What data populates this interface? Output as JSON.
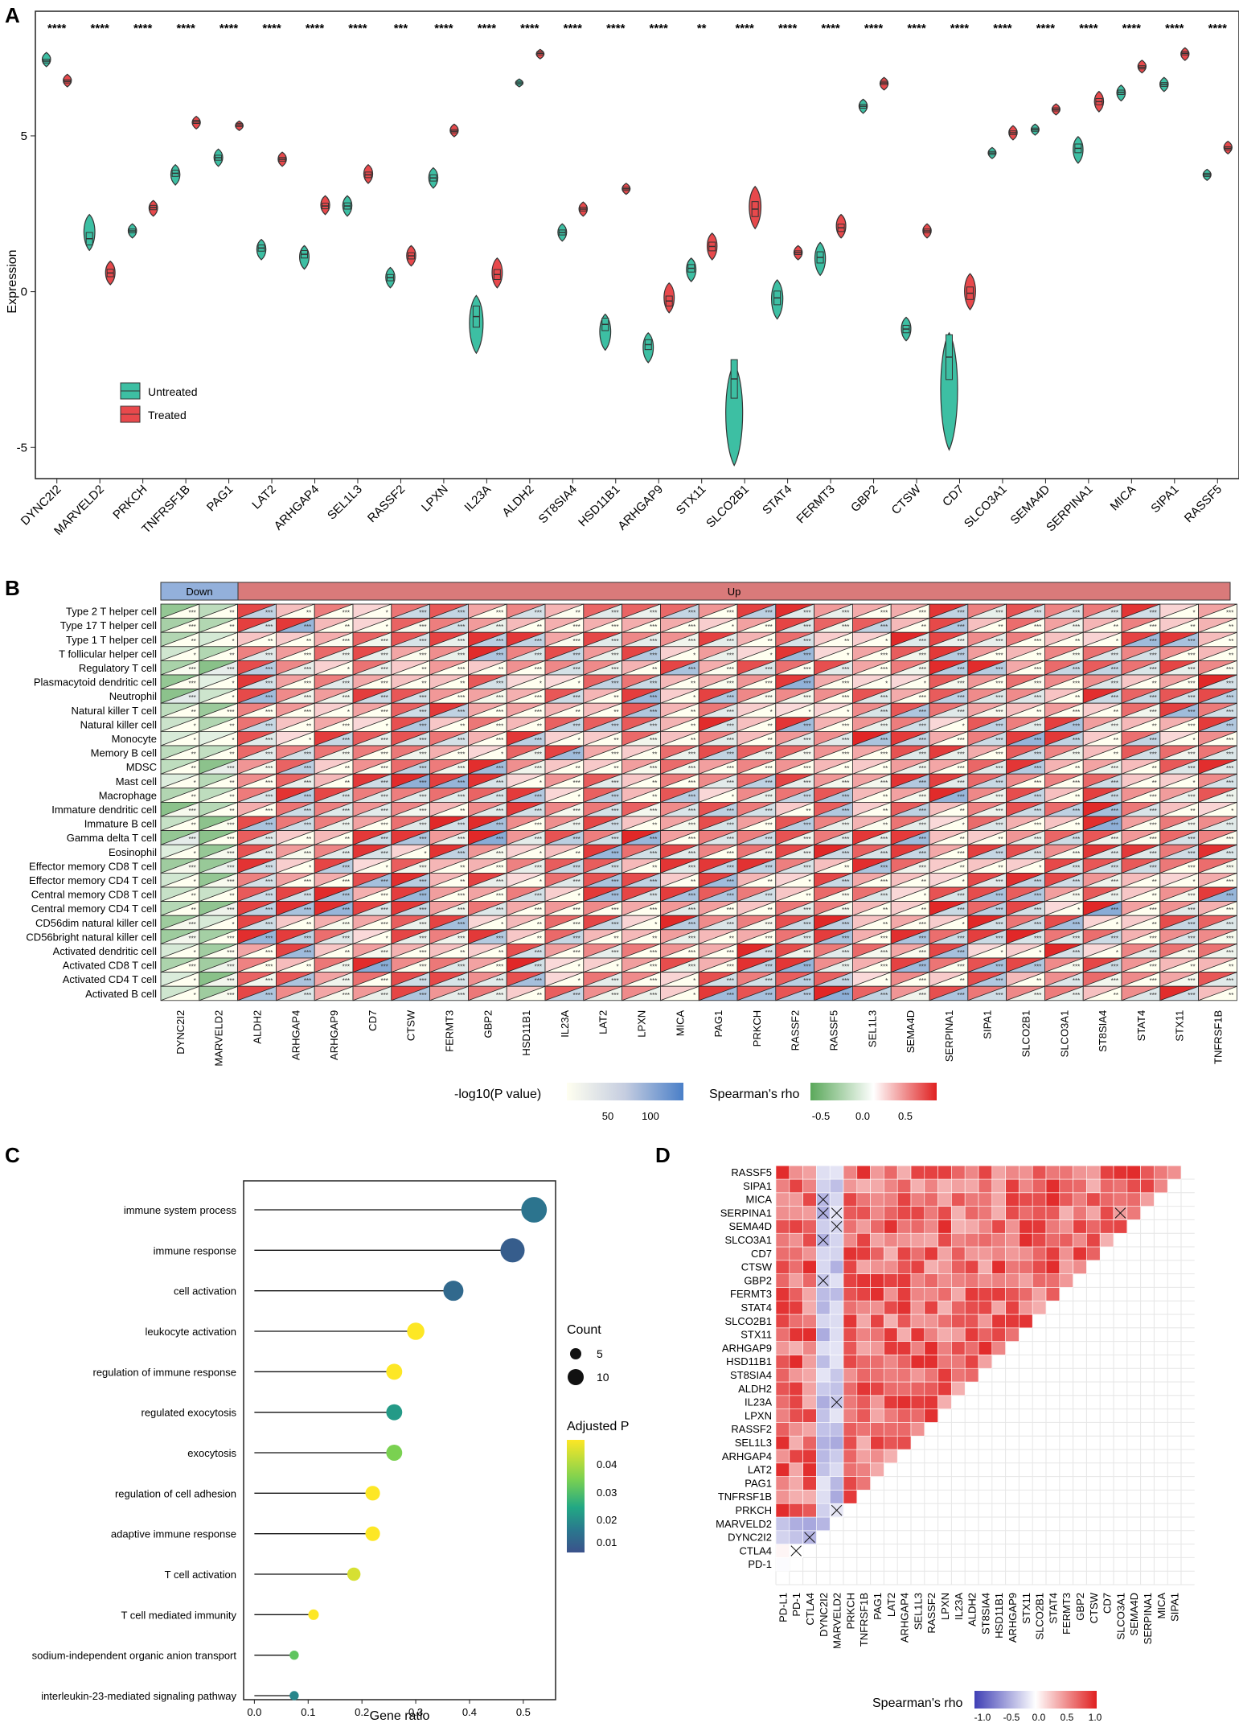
{
  "figure": {
    "panel_labels": [
      "A",
      "B",
      "C",
      "D"
    ]
  },
  "chart_data": [
    {
      "panel": "A",
      "type": "violin",
      "ylabel": "Expression",
      "ylim": [
        -6,
        9
      ],
      "yticks": [
        -5,
        0,
        5
      ],
      "legend": {
        "position": "bottom-left",
        "entries": [
          "Untreated",
          "Treated"
        ],
        "colors": [
          "#3dbfa3",
          "#e8494c"
        ]
      },
      "genes": [
        "DYNC2I2",
        "MARVELD2",
        "PRKCH",
        "TNFRSF1B",
        "PAG1",
        "LAT2",
        "ARHGAP4",
        "SEL1L3",
        "RASSF2",
        "LPXN",
        "IL23A",
        "ALDH2",
        "ST8SIA4",
        "HSD11B1",
        "ARHGAP9",
        "STX11",
        "SLCO2B1",
        "STAT4",
        "FERMT3",
        "GBP2",
        "CTSW",
        "CD7",
        "SLCO3A1",
        "SEMA4D",
        "SERPINA1",
        "MICA",
        "SIPA1",
        "RASSF5"
      ],
      "significance": [
        "****",
        "****",
        "****",
        "****",
        "****",
        "****",
        "****",
        "****",
        "***",
        "****",
        "****",
        "****",
        "****",
        "****",
        "****",
        "**",
        "****",
        "****",
        "****",
        "****",
        "****",
        "****",
        "****",
        "****",
        "****",
        "****",
        "****",
        "****"
      ],
      "untreated": [
        [
          7.6,
          7.3,
          7.4
        ],
        [
          2.4,
          1.4,
          1.7
        ],
        [
          2.1,
          1.8,
          1.95
        ],
        [
          4.0,
          3.5,
          3.8
        ],
        [
          4.5,
          4.1,
          4.3
        ],
        [
          1.6,
          1.1,
          1.4
        ],
        [
          1.4,
          0.8,
          1.2
        ],
        [
          3.0,
          2.5,
          2.75
        ],
        [
          0.7,
          0.2,
          0.45
        ],
        [
          3.9,
          3.4,
          3.65
        ],
        [
          -0.2,
          -1.9,
          -0.8
        ],
        [
          6.75,
          6.65,
          6.7
        ],
        [
          2.1,
          1.7,
          1.9
        ],
        [
          -0.8,
          -1.8,
          -1.05
        ],
        [
          -1.4,
          -2.2,
          -1.7
        ],
        [
          1.0,
          0.4,
          0.75
        ],
        [
          -2.4,
          -5.5,
          -2.8
        ],
        [
          0.3,
          -0.8,
          -0.2
        ],
        [
          1.5,
          0.6,
          1.1
        ],
        [
          6.1,
          5.8,
          5.95
        ],
        [
          -0.9,
          -1.5,
          -1.2
        ],
        [
          -1.4,
          -5.0,
          -2.1
        ],
        [
          4.55,
          4.35,
          4.45
        ],
        [
          5.3,
          5.1,
          5.2
        ],
        [
          4.9,
          4.2,
          4.6
        ],
        [
          6.55,
          6.2,
          6.4
        ],
        [
          6.8,
          6.5,
          6.65
        ],
        [
          3.85,
          3.65,
          3.75
        ]
      ],
      "treated": [
        [
          6.9,
          6.65,
          6.75
        ],
        [
          0.9,
          0.3,
          0.6
        ],
        [
          2.85,
          2.5,
          2.7
        ],
        [
          5.55,
          5.3,
          5.45
        ],
        [
          5.4,
          5.25,
          5.35
        ],
        [
          4.4,
          4.1,
          4.25
        ],
        [
          3.0,
          2.55,
          2.75
        ],
        [
          4.0,
          3.55,
          3.75
        ],
        [
          1.4,
          0.9,
          1.15
        ],
        [
          5.3,
          5.05,
          5.15
        ],
        [
          1.0,
          0.2,
          0.55
        ],
        [
          7.7,
          7.55,
          7.65
        ],
        [
          2.8,
          2.5,
          2.65
        ],
        [
          3.4,
          3.2,
          3.3
        ],
        [
          0.2,
          -0.6,
          -0.3
        ],
        [
          1.8,
          1.1,
          1.45
        ],
        [
          3.3,
          2.1,
          2.65
        ],
        [
          1.4,
          1.1,
          1.25
        ],
        [
          2.4,
          1.8,
          2.05
        ],
        [
          6.8,
          6.55,
          6.7
        ],
        [
          2.1,
          1.8,
          1.95
        ],
        [
          0.5,
          -0.5,
          -0.05
        ],
        [
          5.25,
          4.95,
          5.1
        ],
        [
          5.95,
          5.75,
          5.85
        ],
        [
          6.35,
          5.85,
          6.1
        ],
        [
          7.35,
          7.1,
          7.2
        ],
        [
          7.75,
          7.5,
          7.65
        ],
        [
          4.75,
          4.5,
          4.6
        ]
      ]
    },
    {
      "panel": "B",
      "type": "heatmap",
      "group_labels": {
        "down": "Down",
        "up": "Up"
      },
      "down_count": 2,
      "genes": [
        "DYNC2I2",
        "MARVELD2",
        "ALDH2",
        "ARHGAP4",
        "ARHGAP9",
        "CD7",
        "CTSW",
        "FERMT3",
        "GBP2",
        "HSD11B1",
        "IL23A",
        "LAT2",
        "LPXN",
        "MICA",
        "PAG1",
        "PRKCH",
        "RASSF2",
        "RASSF5",
        "SEL1L3",
        "SEMA4D",
        "SERPINA1",
        "SIPA1",
        "SLCO2B1",
        "SLCO3A1",
        "ST8SIA4",
        "STAT4",
        "STX11",
        "TNFRSF1B"
      ],
      "cell_types": [
        "Type 2 T helper cell",
        "Type 17 T helper cell",
        "Type 1 T helper cell",
        "T follicular helper cell",
        "Regulatory T cell",
        "Plasmacytoid dendritic cell",
        "Neutrophil",
        "Natural killer T cell",
        "Natural killer cell",
        "Monocyte",
        "Memory B cell",
        "MDSC",
        "Mast cell",
        "Macrophage",
        "Immature dendritic cell",
        "Immature B cell",
        "Gamma delta T cell",
        "Eosinophil",
        "Effector memory CD8 T cell",
        "Effector memory CD4 T cell",
        "Central memory CD8 T cell",
        "Central memory CD4 T cell",
        "CD56dim natural killer cell",
        "CD56bright natural killer cell",
        "Activated dendritic cell",
        "Activated CD8 T cell",
        "Activated CD4 T cell",
        "Activated B cell"
      ],
      "legend_p": {
        "title": "-log10(P value)",
        "ticks": [
          50,
          100
        ],
        "low_color": "#fffff0",
        "high_color": "#4a7fc8"
      },
      "legend_rho": {
        "title": "Spearman's rho",
        "ticks": [
          -0.5,
          0.0,
          0.5
        ],
        "low_color": "#5aa85a",
        "mid_color": "#ffffff",
        "high_color": "#e02020"
      }
    },
    {
      "panel": "C",
      "type": "lollipop",
      "xlabel": "Gene ratio",
      "xlim": [
        -0.02,
        0.56
      ],
      "xticks": [
        0.0,
        0.1,
        0.2,
        0.3,
        0.4,
        0.5
      ],
      "terms": [
        "immune system process",
        "immune response",
        "cell activation",
        "leukocyte activation",
        "regulation of immune response",
        "regulated exocytosis",
        "exocytosis",
        "regulation of cell adhesion",
        "adaptive immune response",
        "T cell activation",
        "T cell mediated immunity",
        "sodium-independent organic anion transport",
        "interleukin-23-mediated signaling pathway"
      ],
      "gene_ratio": [
        0.52,
        0.48,
        0.37,
        0.3,
        0.26,
        0.26,
        0.26,
        0.22,
        0.22,
        0.185,
        0.11,
        0.074,
        0.074
      ],
      "count": [
        14,
        13,
        10,
        8,
        7,
        7,
        7,
        6,
        6,
        5,
        3,
        2,
        2
      ],
      "adjusted_p": [
        0.014,
        0.008,
        0.011,
        0.045,
        0.045,
        0.022,
        0.035,
        0.045,
        0.045,
        0.042,
        0.045,
        0.032,
        0.018
      ],
      "legend_count": {
        "title": "Count",
        "entries": [
          5,
          10
        ]
      },
      "legend_p": {
        "title": "Adjusted P",
        "ticks": [
          0.04,
          0.03,
          0.02,
          0.01
        ]
      }
    },
    {
      "panel": "D",
      "type": "correlation-triangle",
      "labels_bottom_to_top": [
        "PD-L1",
        "PD-1",
        "CTLA4",
        "DYNC2I2",
        "MARVELD2",
        "PRKCH",
        "TNFRSF1B",
        "PAG1",
        "LAT2",
        "ARHGAP4",
        "SEL1L3",
        "RASSF2",
        "LPXN",
        "IL23A",
        "ALDH2",
        "ST8SIA4",
        "HSD11B1",
        "ARHGAP9",
        "STX11",
        "SLCO2B1",
        "STAT4",
        "FERMT3",
        "GBP2",
        "CTSW",
        "CD7",
        "SLCO3A1",
        "SEMA4D",
        "SERPINA1",
        "MICA",
        "SIPA1",
        "RASSF5"
      ],
      "nonsignificant_pairs": [
        [
          1,
          2
        ],
        [
          2,
          3
        ],
        [
          4,
          5
        ],
        [
          4,
          13
        ],
        [
          3,
          22
        ],
        [
          3,
          25
        ],
        [
          4,
          26
        ],
        [
          3,
          27
        ],
        [
          4,
          27
        ],
        [
          3,
          28
        ],
        [
          25,
          27
        ]
      ],
      "legend": {
        "title": "Spearman's rho",
        "ticks": [
          -1.0,
          -0.5,
          0.0,
          0.5,
          1.0
        ]
      }
    }
  ]
}
